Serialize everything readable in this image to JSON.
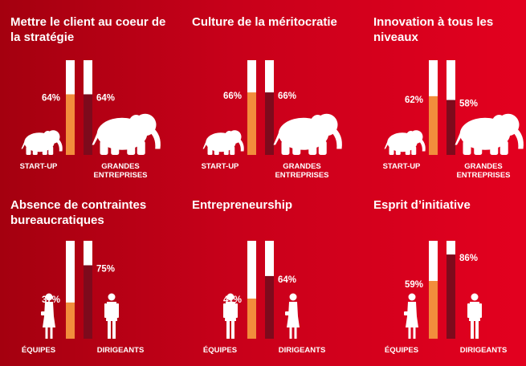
{
  "colors": {
    "bar_fill_first": "#f28d3c",
    "bar_fill_second": "#7e0a1c",
    "bar_background": "#ffffff",
    "text": "#ffffff"
  },
  "chart_data": [
    {
      "type": "bar",
      "title": "Mettre le client au coeur de la stratégie",
      "categories": [
        "START-UP",
        "GRANDES ENTREPRISES"
      ],
      "values": [
        64,
        64
      ],
      "value_labels": [
        "64%",
        "64%"
      ],
      "ylim": [
        0,
        100
      ],
      "icons": [
        "small-elephant-icon",
        "large-elephant-icon"
      ]
    },
    {
      "type": "bar",
      "title": "Culture de la méritocratie",
      "categories": [
        "START-UP",
        "GRANDES ENTREPRISES"
      ],
      "values": [
        66,
        66
      ],
      "value_labels": [
        "66%",
        "66%"
      ],
      "ylim": [
        0,
        100
      ],
      "icons": [
        "small-elephant-icon",
        "large-elephant-icon"
      ]
    },
    {
      "type": "bar",
      "title": "Innovation à tous les niveaux",
      "categories": [
        "START-UP",
        "GRANDES ENTREPRISES"
      ],
      "values": [
        62,
        58
      ],
      "value_labels": [
        "62%",
        "58%"
      ],
      "ylim": [
        0,
        100
      ],
      "icons": [
        "small-elephant-icon",
        "large-elephant-icon"
      ]
    },
    {
      "type": "bar",
      "title": "Absence de contraintes bureaucratiques",
      "categories": [
        "ÉQUIPES",
        "DIRIGEANTS"
      ],
      "values": [
        37,
        75
      ],
      "value_labels": [
        "37%",
        "75%"
      ],
      "ylim": [
        0,
        100
      ],
      "icons": [
        "businesswoman-icon",
        "businessman-icon"
      ]
    },
    {
      "type": "bar",
      "title": "Entrepreneurship",
      "categories": [
        "ÉQUIPES",
        "DIRIGEANTS"
      ],
      "values": [
        41,
        64
      ],
      "value_labels": [
        "41%",
        "64%"
      ],
      "ylim": [
        0,
        100
      ],
      "icons": [
        "businessman-icon",
        "businesswoman-icon"
      ]
    },
    {
      "type": "bar",
      "title": "Esprit d’initiative",
      "categories": [
        "ÉQUIPES",
        "DIRIGEANTS"
      ],
      "values": [
        59,
        86
      ],
      "value_labels": [
        "59%",
        "86%"
      ],
      "ylim": [
        0,
        100
      ],
      "icons": [
        "businesswoman-icon",
        "businessman-icon"
      ]
    }
  ]
}
